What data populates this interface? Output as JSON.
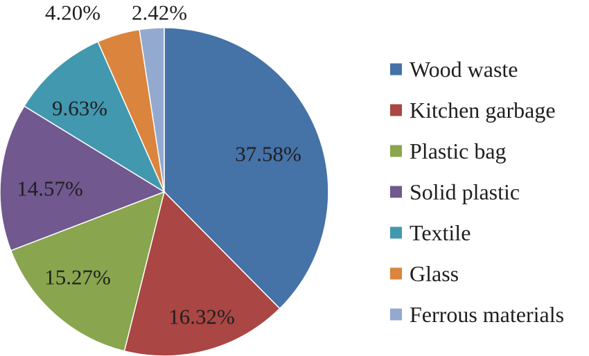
{
  "chart_data": {
    "type": "pie",
    "title": "",
    "categories": [
      "Wood waste",
      "Kitchen garbage",
      "Plastic bag",
      "Solid plastic",
      "Textile",
      "Glass",
      "Ferrous materials"
    ],
    "values": [
      37.58,
      16.32,
      15.27,
      14.57,
      9.63,
      4.2,
      2.42
    ],
    "value_labels": [
      "37.58%",
      "16.32%",
      "15.27%",
      "14.57%",
      "9.63%",
      "4.20%",
      "2.42%"
    ],
    "colors": [
      "#4572A7",
      "#AA4643",
      "#89A54E",
      "#71588F",
      "#4198AF",
      "#DB843D",
      "#93A9CF"
    ],
    "start_angle_deg": 0,
    "direction": "clockwise",
    "legend": {
      "position": "right",
      "entries": [
        "Wood waste",
        "Kitchen garbage",
        "Plastic bag",
        "Solid plastic",
        "Textile",
        "Glass",
        "Ferrous materials"
      ]
    }
  }
}
